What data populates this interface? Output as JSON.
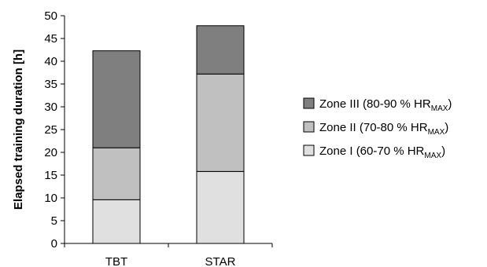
{
  "chart_data": {
    "type": "bar",
    "stacked": true,
    "categories": [
      "TBT",
      "STAR"
    ],
    "series": [
      {
        "name": "Zone I (60-70 % HRMAX)",
        "values": [
          9.6,
          15.8
        ],
        "color": "#e0e0e0",
        "legend_main": "Zone I (60-70 % HR",
        "legend_sub": "MAX",
        "legend_end": ")"
      },
      {
        "name": "Zone II (70-80 % HRMAX)",
        "values": [
          11.4,
          21.4
        ],
        "color": "#c0c0c0",
        "legend_main": "Zone II (70-80 % HR",
        "legend_sub": "MAX",
        "legend_end": ")"
      },
      {
        "name": "Zone III (80-90 % HRMAX)",
        "values": [
          21.3,
          10.6
        ],
        "color": "#7f7f7f",
        "legend_main": "Zone III (80-90 % HR",
        "legend_sub": "MAX",
        "legend_end": ")"
      }
    ],
    "ylabel": "Elapsed training duration [h]",
    "xlabel": "",
    "title": "",
    "ylim": [
      0,
      50
    ],
    "yticks": [
      0,
      5,
      10,
      15,
      20,
      25,
      30,
      35,
      40,
      45,
      50
    ],
    "grid": false,
    "legend_position": "right",
    "legend_order": [
      2,
      1,
      0
    ]
  }
}
